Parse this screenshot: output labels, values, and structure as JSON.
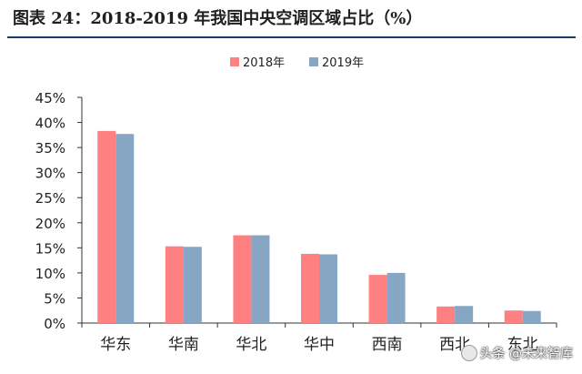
{
  "figure": {
    "title": "图表  24：2018-2019 年我国中央空调区域占比（%）"
  },
  "watermark": {
    "text": "头条 @未来智库",
    "icon": "toutiao-logo-icon"
  },
  "chart_data": {
    "type": "bar",
    "title": "",
    "xlabel": "",
    "ylabel": "",
    "categories": [
      "华东",
      "华南",
      "华北",
      "华中",
      "西南",
      "西北",
      "东北"
    ],
    "series": [
      {
        "name": "2018年",
        "color": "#ff8080",
        "values": [
          38.3,
          15.3,
          17.5,
          13.8,
          9.6,
          3.3,
          2.5
        ]
      },
      {
        "name": "2019年",
        "color": "#87a6c4",
        "values": [
          37.7,
          15.2,
          17.5,
          13.7,
          10.0,
          3.4,
          2.4
        ]
      }
    ],
    "ylim": [
      0,
      45
    ],
    "yticks": [
      "0%",
      "5%",
      "10%",
      "15%",
      "20%",
      "25%",
      "30%",
      "35%",
      "40%",
      "45%"
    ],
    "legend_position": "top-center",
    "grid": false
  }
}
